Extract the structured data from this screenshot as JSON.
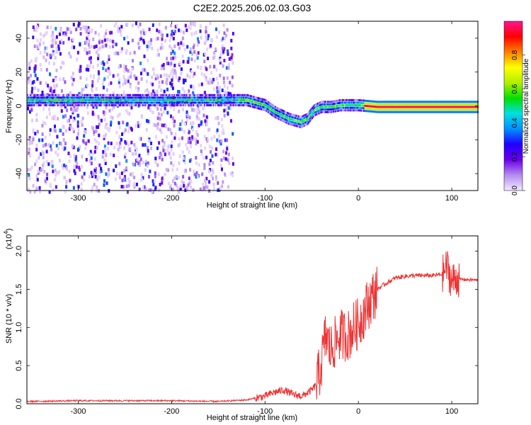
{
  "title": "C2E2.2025.206.02.03.G03",
  "chart_data": [
    {
      "type": "heatmap",
      "xlabel": "Height of straight line (km)",
      "ylabel": "Frequency (Hz)",
      "xlim": [
        -355,
        128
      ],
      "ylim": [
        -50,
        50
      ],
      "xticks": [
        -300,
        -200,
        -100,
        0,
        100
      ],
      "yticks": [
        -40,
        -20,
        0,
        20,
        40
      ],
      "colorbar": {
        "label": "Normalized spectral amplitude",
        "range": [
          0.0,
          1.0
        ],
        "ticks": [
          0.0,
          0.2,
          0.4,
          0.6,
          0.8
        ],
        "colors": [
          "#f4e8ff",
          "#b48cf0",
          "#6a00e8",
          "#2000ff",
          "#0090ff",
          "#00e0e0",
          "#00e000",
          "#b0f000",
          "#ffff00",
          "#ff8000",
          "#ff0000",
          "#ff1493"
        ]
      },
      "ridge_frequency_hz": [
        {
          "x": -355,
          "y": 4
        },
        {
          "x": -300,
          "y": 4
        },
        {
          "x": -200,
          "y": 4
        },
        {
          "x": -140,
          "y": 4
        },
        {
          "x": -120,
          "y": 4
        },
        {
          "x": -100,
          "y": 1
        },
        {
          "x": -90,
          "y": -3
        },
        {
          "x": -75,
          "y": -7
        },
        {
          "x": -62,
          "y": -9
        },
        {
          "x": -55,
          "y": -7
        },
        {
          "x": -48,
          "y": -2
        },
        {
          "x": -40,
          "y": 0
        },
        {
          "x": -30,
          "y": 0
        },
        {
          "x": -20,
          "y": 1
        },
        {
          "x": 0,
          "y": 1
        },
        {
          "x": 20,
          "y": 0
        },
        {
          "x": 128,
          "y": 0
        }
      ]
    },
    {
      "type": "line",
      "xlabel": "Height of straight line (km)",
      "ylabel": "SNR (10 * v/v)",
      "multiplier_label": "(x10",
      "multiplier_exp": "4",
      "xlim": [
        -355,
        128
      ],
      "ylim": [
        0,
        2.2
      ],
      "xticks": [
        -300,
        -200,
        -100,
        0,
        100
      ],
      "yticks": [
        0.0,
        0.5,
        1.0,
        1.5,
        2.0
      ],
      "series": [
        {
          "color": "#ee3333",
          "x": [
            -355,
            -300,
            -250,
            -200,
            -150,
            -120,
            -100,
            -90,
            -80,
            -70,
            -60,
            -50,
            -45,
            -40,
            -35,
            -30,
            -25,
            -20,
            -15,
            -10,
            -5,
            0,
            10,
            20,
            30,
            40,
            50,
            60,
            70,
            80,
            90,
            95,
            100,
            105,
            110,
            128
          ],
          "y": [
            0.03,
            0.04,
            0.04,
            0.04,
            0.03,
            0.05,
            0.1,
            0.15,
            0.18,
            0.12,
            0.1,
            0.18,
            0.25,
            0.5,
            0.9,
            0.7,
            0.8,
            0.9,
            0.9,
            0.9,
            1.0,
            1.05,
            1.3,
            1.5,
            1.58,
            1.65,
            1.67,
            1.68,
            1.68,
            1.68,
            1.7,
            1.8,
            1.6,
            1.65,
            1.63,
            1.62
          ]
        }
      ]
    }
  ]
}
